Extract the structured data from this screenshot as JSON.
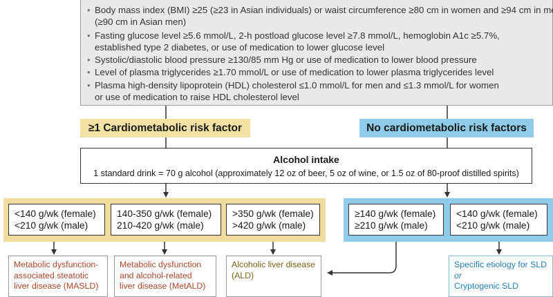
{
  "criteria": {
    "items": [
      {
        "lines": [
          "Body mass index (BMI) ≥25 (≥23 in Asian individuals) or waist circumference ≥80 cm in women and ≥94 cm in men",
          "(≥90 cm in Asian men)"
        ]
      },
      {
        "lines": [
          "Fasting glucose level ≥5.6 mmol/L, 2-h postload glucose level ≥7.8 mmol/L, hemoglobin A1c ≥5.7%,",
          "established type 2 diabetes, or use of medication to lower glucose level"
        ]
      },
      {
        "lines": [
          "Systolic/diastolic blood pressure ≥130/85 mm Hg or use of medication to lower blood pressure"
        ]
      },
      {
        "lines": [
          "Level of plasma triglycerides ≥1.70 mmol/L or use of medication to lower plasma triglycerides level"
        ]
      },
      {
        "lines": [
          "Plasma high-density lipoprotein (HDL) cholesterol ≤1.0 mmol/L for men and ≤1.3 mmol/L for women",
          "or use of medication to raise HDL cholesterol level"
        ]
      }
    ]
  },
  "headers": {
    "risk": "≥1 Cardiometabolic risk factor",
    "no_risk": "No cardiometabolic risk factors"
  },
  "alcohol": {
    "title": "Alcohol intake",
    "note": "1 standard drink = 70 g alcohol (approximately 12 oz of beer, 5 oz of wine, or 1.5 oz of 80-proof distilled spirits)"
  },
  "thresholds": {
    "risk": [
      {
        "female": "<140 g/wk (female)",
        "male": "<210 g/wk (male)"
      },
      {
        "female": "140-350 g/wk (female)",
        "male": "210-420 g/wk (male)"
      },
      {
        "female": ">350 g/wk (female)",
        "male": ">420 g/wk (male)"
      }
    ],
    "no_risk": [
      {
        "female": "≥140 g/wk (female)",
        "male": "≥210 g/wk (male)"
      },
      {
        "female": "<140 g/wk (female)",
        "male": "<210 g/wk (male)"
      }
    ]
  },
  "outcomes": {
    "masld": [
      "Metabolic dysfunction-",
      "associated steatotic",
      "liver disease (MASLD)"
    ],
    "metald": [
      "Metabolic dysfunction",
      "and alcohol-related",
      "liver disease (MetALD)"
    ],
    "ald": [
      "Alcoholic liver disease",
      "(ALD)"
    ],
    "specific": "Specific etiology for SLD",
    "or": "or",
    "cryptogenic": "Cryptogenic SLD"
  },
  "colors": {
    "risk_accent": "#f0dc9c",
    "no_risk_accent": "#8fcce9",
    "masld_text": "#b0452b",
    "ald_text": "#7a6213",
    "specific_text": "#1f7fb8"
  }
}
